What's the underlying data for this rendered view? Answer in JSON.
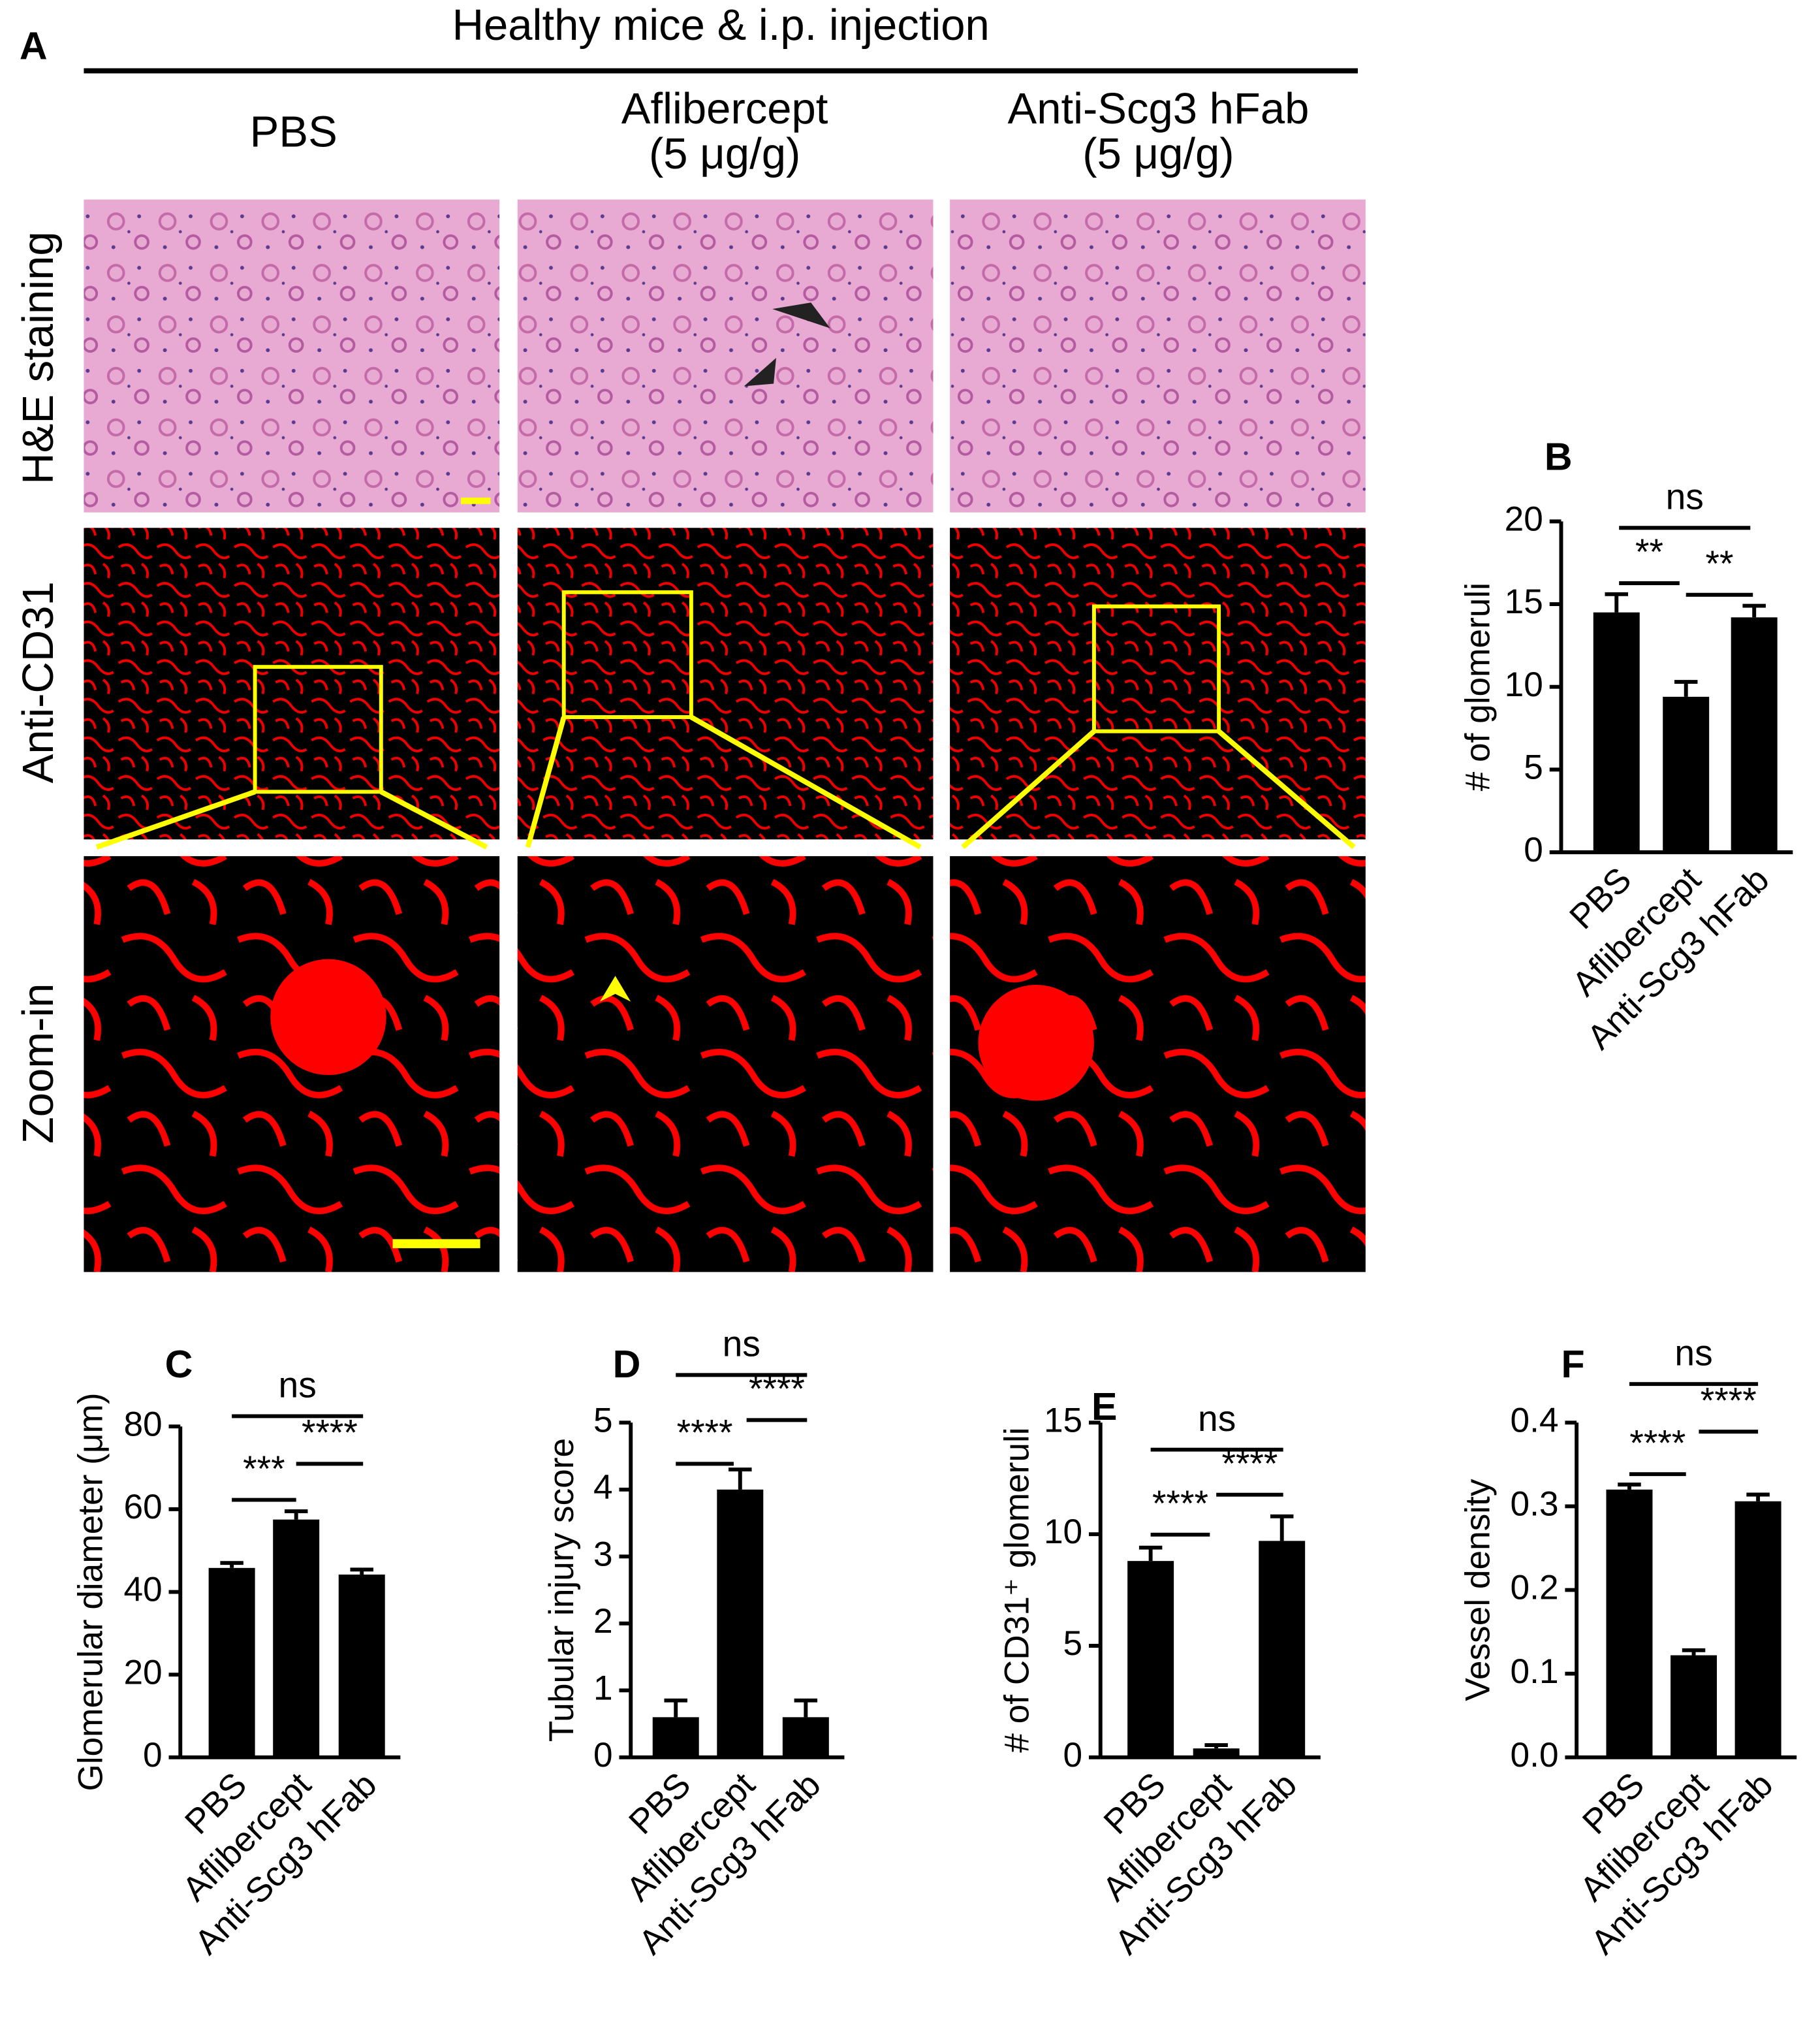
{
  "panel_a": {
    "label": "A",
    "header": "Healthy mice & i.p. injection",
    "columns": [
      [
        "PBS"
      ],
      [
        "Aflibercept",
        "(5 μg/g)"
      ],
      [
        "Anti-Scg3 hFab",
        "(5 μg/g)"
      ]
    ],
    "rows": [
      "H&E staining",
      "Anti-CD31",
      "Zoom-in"
    ]
  },
  "chart_data": [
    {
      "type": "bar",
      "panel": "B",
      "y_label": "# of glomeruli",
      "categories": [
        "PBS",
        "Aflibercept",
        "Anti-Scg3 hFab"
      ],
      "values": [
        14.5,
        9.4,
        14.2
      ],
      "errors": [
        1.1,
        0.9,
        0.7
      ],
      "color": "#000000",
      "ylim": [
        0,
        20
      ],
      "yticks": [
        0,
        5,
        10,
        15,
        20
      ],
      "comparisons": [
        "**",
        "**",
        "ns"
      ]
    },
    {
      "type": "bar",
      "panel": "C",
      "y_label": "Glomerular diameter (μm)",
      "categories": [
        "PBS",
        "Aflibercept",
        "Anti-Scg3 hFab"
      ],
      "values": [
        45.8,
        57.5,
        44.2
      ],
      "errors": [
        1.2,
        2.0,
        1.2
      ],
      "color": "#000000",
      "ylim": [
        0,
        80
      ],
      "yticks": [
        0,
        20,
        40,
        60,
        80
      ],
      "comparisons": [
        "***",
        "****",
        "ns"
      ]
    },
    {
      "type": "bar",
      "panel": "D",
      "y_label": "Tubular injury score",
      "categories": [
        "PBS",
        "Aflibercept",
        "Anti-Scg3 hFab"
      ],
      "values": [
        0.6,
        4.0,
        0.6
      ],
      "errors": [
        0.25,
        0.3,
        0.25
      ],
      "color": "#000000",
      "ylim": [
        0,
        5
      ],
      "yticks": [
        0,
        1,
        2,
        3,
        4,
        5
      ],
      "comparisons": [
        "****",
        "****",
        "ns"
      ]
    },
    {
      "type": "bar",
      "panel": "E",
      "y_label": "# of CD31⁺ glomeruli",
      "categories": [
        "PBS",
        "Aflibercept",
        "Anti-Scg3 hFab"
      ],
      "values": [
        8.8,
        0.4,
        9.7
      ],
      "errors": [
        0.6,
        0.15,
        1.1
      ],
      "color": "#000000",
      "ylim": [
        0,
        15
      ],
      "yticks": [
        0,
        5,
        10,
        15
      ],
      "comparisons": [
        "****",
        "****",
        "ns"
      ]
    },
    {
      "type": "bar",
      "panel": "F",
      "y_label": "Vessel density",
      "categories": [
        "PBS",
        "Aflibercept",
        "Anti-Scg3 hFab"
      ],
      "values": [
        0.32,
        0.122,
        0.306
      ],
      "errors": [
        0.006,
        0.006,
        0.008
      ],
      "color": "#000000",
      "ylim": [
        0,
        0.4
      ],
      "yticks": [
        {
          "value": 0,
          "label": "0.0"
        },
        0.1,
        0.2,
        0.3,
        0.4
      ],
      "comparisons": [
        "****",
        "****",
        "ns"
      ]
    }
  ]
}
